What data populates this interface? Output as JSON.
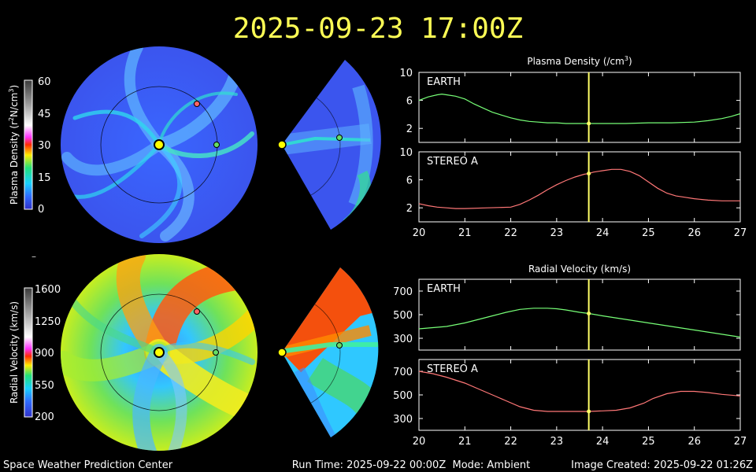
{
  "header": {
    "timestamp": "2025-09-23 17:00Z",
    "title_color": "#ffff55"
  },
  "footer": {
    "left": "Space Weather Prediction Center",
    "center": "Run Time: 2025-09-22 00:00Z  Mode: Ambient",
    "right": "Image Created: 2025-09-22 01:26Z"
  },
  "colorbars": {
    "density": {
      "label_parts": [
        "Plasma Density (r",
        "2",
        "N/cm",
        "3",
        ")"
      ],
      "ticks": [
        "60",
        "45",
        "30",
        "15",
        "0"
      ]
    },
    "velocity": {
      "label": "Radial Velocity (km/s)",
      "ticks": [
        "1600",
        "1250",
        "900",
        "550",
        "200"
      ]
    },
    "separator": "–"
  },
  "colors": {
    "earth_line": "#77ff77",
    "stereo_line": "#ff7777",
    "current_time_marker": "#ffff66",
    "earth_marker": "#66dd66",
    "stereo_marker": "#ff6666",
    "sun": "#ffff00"
  },
  "chart_data": [
    {
      "type": "line",
      "title_parts": [
        "Plasma Density (/cm",
        "3",
        ")"
      ],
      "panel_label": "EARTH",
      "xlim": [
        20,
        27
      ],
      "ylim": [
        0,
        10
      ],
      "yticks": [
        2,
        6,
        10
      ],
      "current_time": 23.7,
      "series": [
        {
          "x": [
            20.0,
            20.2,
            20.4,
            20.5,
            20.6,
            20.8,
            21.0,
            21.2,
            21.4,
            21.6,
            21.8,
            22.0,
            22.2,
            22.4,
            22.6,
            22.8,
            23.0,
            23.2,
            23.5,
            23.7,
            24.0,
            24.5,
            25.0,
            25.5,
            26.0,
            26.3,
            26.6,
            26.8,
            27.0
          ],
          "y": [
            6.0,
            6.5,
            6.8,
            6.9,
            6.8,
            6.6,
            6.2,
            5.5,
            4.9,
            4.3,
            3.9,
            3.5,
            3.2,
            3.0,
            2.9,
            2.8,
            2.8,
            2.7,
            2.7,
            2.7,
            2.7,
            2.7,
            2.8,
            2.8,
            2.9,
            3.1,
            3.4,
            3.7,
            4.1
          ]
        }
      ]
    },
    {
      "type": "line",
      "panel_label": "STEREO A",
      "xlim": [
        20,
        27
      ],
      "ylim": [
        0,
        10
      ],
      "yticks": [
        2,
        6,
        10
      ],
      "xticks": [
        "20",
        "21",
        "22",
        "23",
        "24",
        "25",
        "26",
        "27"
      ],
      "current_time": 23.7,
      "series": [
        {
          "x": [
            20.0,
            20.2,
            20.4,
            20.6,
            20.8,
            21.0,
            21.5,
            22.0,
            22.2,
            22.4,
            22.6,
            22.8,
            23.0,
            23.2,
            23.4,
            23.6,
            23.7,
            23.8,
            24.0,
            24.2,
            24.4,
            24.6,
            24.8,
            25.0,
            25.2,
            25.4,
            25.6,
            25.8,
            26.0,
            26.3,
            26.6,
            27.0
          ],
          "y": [
            2.6,
            2.3,
            2.1,
            2.0,
            1.9,
            1.9,
            2.0,
            2.1,
            2.5,
            3.1,
            3.8,
            4.6,
            5.3,
            5.9,
            6.4,
            6.8,
            6.9,
            7.1,
            7.3,
            7.5,
            7.5,
            7.2,
            6.6,
            5.7,
            4.8,
            4.1,
            3.7,
            3.5,
            3.3,
            3.1,
            3.0,
            3.0
          ]
        }
      ]
    },
    {
      "type": "line",
      "title": "Radial Velocity (km/s)",
      "panel_label": "EARTH",
      "xlim": [
        20,
        27
      ],
      "ylim": [
        200,
        800
      ],
      "yticks": [
        300,
        500,
        700
      ],
      "current_time": 23.7,
      "series": [
        {
          "x": [
            20.0,
            20.3,
            20.6,
            21.0,
            21.3,
            21.6,
            21.9,
            22.2,
            22.5,
            22.8,
            23.0,
            23.2,
            23.5,
            23.7,
            24.0,
            24.5,
            25.0,
            25.5,
            26.0,
            26.5,
            27.0
          ],
          "y": [
            380,
            390,
            400,
            430,
            460,
            490,
            520,
            545,
            555,
            555,
            550,
            540,
            520,
            510,
            490,
            460,
            430,
            400,
            370,
            340,
            310
          ]
        }
      ]
    },
    {
      "type": "line",
      "panel_label": "STEREO A",
      "xlim": [
        20,
        27
      ],
      "ylim": [
        200,
        800
      ],
      "yticks": [
        300,
        500,
        700
      ],
      "xticks": [
        "20",
        "21",
        "22",
        "23",
        "24",
        "25",
        "26",
        "27"
      ],
      "current_time": 23.7,
      "series": [
        {
          "x": [
            20.0,
            20.3,
            20.6,
            21.0,
            21.3,
            21.6,
            21.9,
            22.2,
            22.5,
            22.8,
            23.0,
            23.3,
            23.7,
            24.0,
            24.3,
            24.6,
            24.9,
            25.1,
            25.4,
            25.7,
            26.0,
            26.3,
            26.6,
            26.9,
            27.0
          ],
          "y": [
            700,
            680,
            650,
            600,
            550,
            500,
            450,
            400,
            370,
            360,
            360,
            360,
            360,
            365,
            370,
            390,
            430,
            470,
            510,
            530,
            530,
            520,
            505,
            495,
            490
          ]
        }
      ]
    }
  ]
}
